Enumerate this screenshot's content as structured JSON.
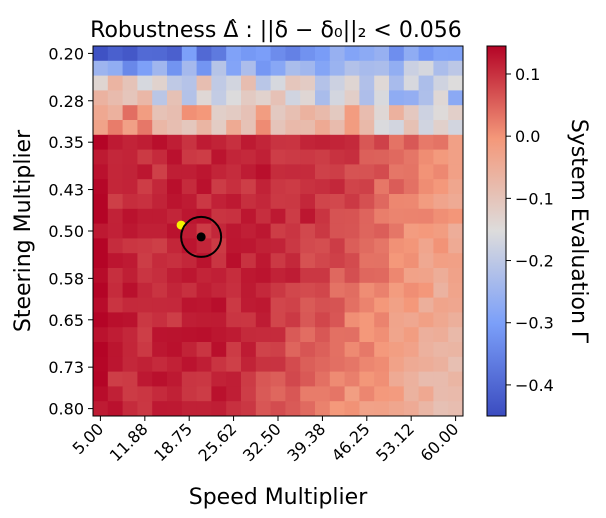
{
  "chart_data": {
    "type": "heatmap",
    "title": "Robustness Δ̂ : ||δ − δ₀||₂ < 0.056",
    "xlabel": "Speed Multiplier",
    "ylabel": "Steering Multiplier",
    "x_ticks": [
      "5.00",
      "11.88",
      "18.75",
      "25.62",
      "32.50",
      "39.38",
      "46.25",
      "53.12",
      "60.00"
    ],
    "y_ticks": [
      "0.20",
      "0.28",
      "0.35",
      "0.43",
      "0.50",
      "0.58",
      "0.65",
      "0.73",
      "0.80"
    ],
    "xlim": [
      5.0,
      60.0
    ],
    "ylim": [
      0.2,
      0.8
    ],
    "grid_size": [
      25,
      25
    ],
    "colormap": "coolwarm",
    "colorbar": {
      "label": "System Evaluation Γ",
      "range": [
        -0.45,
        0.145
      ],
      "ticks": [
        "0.1",
        "0.0",
        "−0.1",
        "−0.2",
        "−0.3",
        "−0.4"
      ],
      "tick_values": [
        0.1,
        0.0,
        -0.1,
        -0.2,
        -0.3,
        -0.4
      ]
    },
    "markers": {
      "nominal_point": {
        "speed": 20.6,
        "steering": 0.51,
        "color": "#000000"
      },
      "robustness_circle": {
        "radius": 0.056,
        "color": "#000000"
      },
      "highlight_point": {
        "speed": 17.5,
        "steering": 0.49,
        "color": "#f5f200"
      }
    },
    "field_description": {
      "top_rows_value": -0.35,
      "transition_rows_value": -0.1,
      "lower_region_value": 0.11,
      "right_lower_region_value": 0.03
    }
  }
}
